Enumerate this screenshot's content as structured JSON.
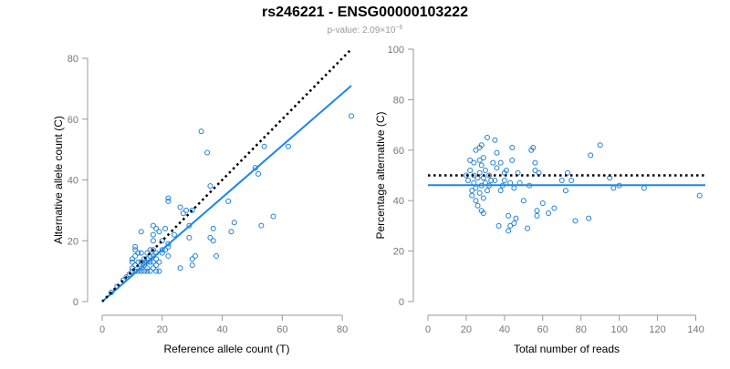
{
  "figure": {
    "title": "rs246221 - ENSG00000103222",
    "subtitle_prefix": "p-value: 2.09×10",
    "subtitle_exponent": "−6"
  },
  "colors": {
    "point": "#1f7fd4",
    "fit_line": "#1e88e5",
    "reference_line": "#000000",
    "axis": "#999999",
    "tick_label": "#777777",
    "title": "#000000",
    "subtitle": "#999999"
  },
  "chart_data": [
    {
      "type": "scatter",
      "title": "",
      "xlabel": "Reference allele count (T)",
      "ylabel": "Alternative allele count (C)",
      "xlim": [
        0,
        83
      ],
      "ylim": [
        0,
        80
      ],
      "xticks": [
        0,
        20,
        40,
        60,
        80
      ],
      "yticks": [
        0,
        20,
        40,
        60,
        80
      ],
      "grid": false,
      "reference_line": {
        "style": "dotted",
        "color": "#000000",
        "points": [
          [
            0,
            0
          ],
          [
            83,
            83
          ]
        ]
      },
      "fit_line": {
        "style": "solid",
        "color": "#1e88e5",
        "points": [
          [
            0,
            0
          ],
          [
            83,
            71
          ]
        ]
      },
      "points": [
        [
          3,
          3
        ],
        [
          5,
          5
        ],
        [
          7,
          7
        ],
        [
          8,
          8
        ],
        [
          9,
          9
        ],
        [
          10,
          10
        ],
        [
          10,
          11
        ],
        [
          10,
          13
        ],
        [
          10,
          14
        ],
        [
          11,
          10
        ],
        [
          11,
          12
        ],
        [
          11,
          15
        ],
        [
          11,
          17
        ],
        [
          11,
          18
        ],
        [
          12,
          10
        ],
        [
          12,
          13
        ],
        [
          12,
          16
        ],
        [
          13,
          10
        ],
        [
          13,
          11
        ],
        [
          13,
          13
        ],
        [
          13,
          16
        ],
        [
          13,
          23
        ],
        [
          14,
          10
        ],
        [
          14,
          12
        ],
        [
          14,
          13
        ],
        [
          14,
          14
        ],
        [
          15,
          10
        ],
        [
          15,
          11
        ],
        [
          15,
          13
        ],
        [
          15,
          14
        ],
        [
          15,
          16
        ],
        [
          16,
          10
        ],
        [
          16,
          13
        ],
        [
          16,
          15
        ],
        [
          16,
          17
        ],
        [
          17,
          11
        ],
        [
          17,
          13
        ],
        [
          17,
          15
        ],
        [
          17,
          17
        ],
        [
          17,
          20
        ],
        [
          17,
          22
        ],
        [
          17,
          25
        ],
        [
          18,
          10
        ],
        [
          18,
          12
        ],
        [
          18,
          14
        ],
        [
          18,
          16
        ],
        [
          18,
          24
        ],
        [
          19,
          10
        ],
        [
          19,
          13
        ],
        [
          19,
          23
        ],
        [
          20,
          16
        ],
        [
          20,
          17
        ],
        [
          20,
          20
        ],
        [
          21,
          17
        ],
        [
          21,
          24
        ],
        [
          22,
          15
        ],
        [
          22,
          18
        ],
        [
          22,
          19
        ],
        [
          22,
          33
        ],
        [
          22,
          34
        ],
        [
          24,
          22
        ],
        [
          26,
          11
        ],
        [
          26,
          31
        ],
        [
          27,
          29
        ],
        [
          28,
          30
        ],
        [
          29,
          21
        ],
        [
          29,
          25
        ],
        [
          30,
          12
        ],
        [
          30,
          14
        ],
        [
          30,
          30
        ],
        [
          31,
          15
        ],
        [
          33,
          56
        ],
        [
          35,
          49
        ],
        [
          36,
          38
        ],
        [
          36,
          21
        ],
        [
          37,
          24
        ],
        [
          37,
          20
        ],
        [
          38,
          15
        ],
        [
          42,
          33
        ],
        [
          43,
          23
        ],
        [
          44,
          26
        ],
        [
          51,
          44
        ],
        [
          52,
          42
        ],
        [
          53,
          25
        ],
        [
          54,
          51
        ],
        [
          57,
          28
        ],
        [
          62,
          51
        ],
        [
          83,
          61
        ]
      ]
    },
    {
      "type": "scatter",
      "title": "",
      "xlabel": "Total number of reads",
      "ylabel": "Percentage alternative (C)",
      "xlim": [
        0,
        145
      ],
      "ylim": [
        0,
        100
      ],
      "xticks": [
        0,
        20,
        40,
        60,
        80,
        100,
        120,
        140
      ],
      "yticks": [
        0,
        20,
        40,
        60,
        80,
        100
      ],
      "grid": false,
      "reference_line": {
        "style": "dotted",
        "color": "#000000",
        "points": [
          [
            0,
            50
          ],
          [
            145,
            50
          ]
        ]
      },
      "fit_line": {
        "style": "solid",
        "color": "#1e88e5",
        "points": [
          [
            0,
            46.1
          ],
          [
            145,
            46.1
          ]
        ]
      },
      "points": [
        [
          20,
          50
        ],
        [
          21,
          48
        ],
        [
          22,
          52
        ],
        [
          22,
          56
        ],
        [
          23,
          44
        ],
        [
          23,
          42
        ],
        [
          24,
          47
        ],
        [
          24,
          50
        ],
        [
          24,
          55
        ],
        [
          25,
          40
        ],
        [
          25,
          45
        ],
        [
          25,
          60
        ],
        [
          26,
          38
        ],
        [
          26,
          49
        ],
        [
          27,
          43
        ],
        [
          27,
          51
        ],
        [
          27,
          56
        ],
        [
          27,
          61
        ],
        [
          28,
          36
        ],
        [
          28,
          46
        ],
        [
          28,
          54
        ],
        [
          28,
          62
        ],
        [
          29,
          35
        ],
        [
          29,
          41
        ],
        [
          29,
          49
        ],
        [
          29,
          57
        ],
        [
          30,
          47
        ],
        [
          30,
          52
        ],
        [
          31,
          44
        ],
        [
          31,
          65
        ],
        [
          32,
          46
        ],
        [
          32,
          50
        ],
        [
          33,
          48
        ],
        [
          34,
          55
        ],
        [
          35,
          48
        ],
        [
          35,
          64
        ],
        [
          36,
          53
        ],
        [
          36,
          59
        ],
        [
          37,
          30
        ],
        [
          38,
          44
        ],
        [
          38,
          55
        ],
        [
          39,
          46
        ],
        [
          40,
          48
        ],
        [
          40,
          51
        ],
        [
          41,
          52
        ],
        [
          42,
          28
        ],
        [
          42,
          34
        ],
        [
          43,
          30
        ],
        [
          43,
          47
        ],
        [
          44,
          56
        ],
        [
          44,
          61
        ],
        [
          45,
          31
        ],
        [
          45,
          45
        ],
        [
          46,
          33
        ],
        [
          47,
          51
        ],
        [
          48,
          47
        ],
        [
          50,
          40
        ],
        [
          52,
          29
        ],
        [
          53,
          46
        ],
        [
          54,
          60
        ],
        [
          55,
          61
        ],
        [
          56,
          52
        ],
        [
          56,
          55
        ],
        [
          57,
          36
        ],
        [
          57,
          34
        ],
        [
          58,
          51
        ],
        [
          60,
          39
        ],
        [
          63,
          35
        ],
        [
          66,
          37
        ],
        [
          70,
          48
        ],
        [
          72,
          44
        ],
        [
          73,
          51
        ],
        [
          75,
          48
        ],
        [
          77,
          32
        ],
        [
          84,
          33
        ],
        [
          85,
          58
        ],
        [
          90,
          62
        ],
        [
          95,
          49
        ],
        [
          97,
          45
        ],
        [
          100,
          46
        ],
        [
          113,
          45
        ],
        [
          142,
          42
        ]
      ]
    }
  ]
}
